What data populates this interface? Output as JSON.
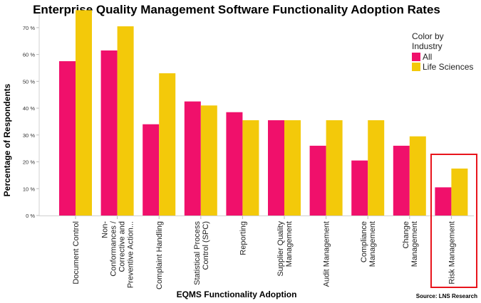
{
  "chart_data": {
    "type": "bar",
    "title": "Enterprise Quality Management Software Functionality Adoption Rates",
    "xlabel": "EQMS Functionality Adoption",
    "ylabel": "Percentage of Respondents",
    "ylim": [
      0,
      75
    ],
    "yticks": [
      0,
      10,
      20,
      30,
      40,
      50,
      60,
      70
    ],
    "ytick_suffix": " %",
    "grid": false,
    "categories": [
      [
        "Document Control"
      ],
      [
        "Non-",
        "Conformances /",
        "Corrective and",
        "Preventive Action..."
      ],
      [
        "Complaint Handling"
      ],
      [
        "Statistical Process",
        "Control (SPC)"
      ],
      [
        "Reporting"
      ],
      [
        "Supplier Quality",
        "Management"
      ],
      [
        "Audit Management"
      ],
      [
        "Compliance",
        "Management"
      ],
      [
        "Change",
        "Management"
      ],
      [
        "Risk Management"
      ]
    ],
    "series": [
      {
        "name": "All",
        "color": "#f0106b",
        "values": [
          57.5,
          61.5,
          34,
          42.5,
          38.5,
          35.5,
          26,
          20.5,
          26,
          10.5
        ]
      },
      {
        "name": "Life Sciences",
        "color": "#f3c90a",
        "values": [
          76.5,
          70.5,
          53,
          41,
          35.5,
          35.5,
          35.5,
          35.5,
          29.5,
          17.5
        ]
      }
    ],
    "legend": {
      "title_lines": [
        "Color by",
        "Industry"
      ],
      "position": "top-right"
    },
    "highlight": {
      "category_index": 9,
      "color": "#e8141c"
    },
    "source": "Source: LNS Research"
  }
}
